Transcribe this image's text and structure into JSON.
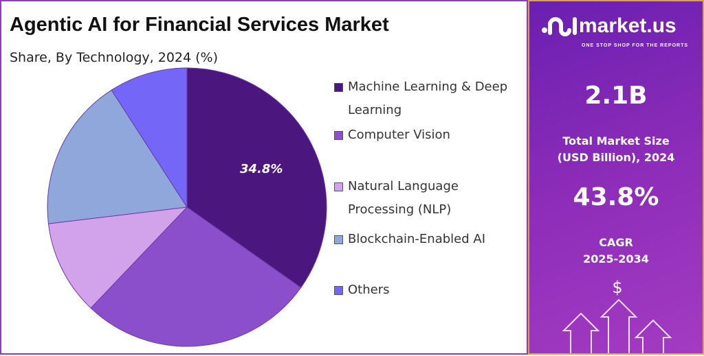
{
  "chart_data": {
    "type": "pie",
    "title": "Agentic AI for Financial Services Market",
    "subtitle": "Share, By Technology, 2024 (%)",
    "categories": [
      "Machine Learning & Deep Learning",
      "Computer Vision",
      "Natural Language Processing (NLP)",
      "Blockchain-Enabled AI",
      "Others"
    ],
    "values": [
      34.8,
      27.3,
      11.0,
      17.8,
      9.1
    ],
    "colors": [
      "#4b167e",
      "#8c4fcb",
      "#d2a3ea",
      "#8fa7da",
      "#7467f8"
    ],
    "data_labels": [
      "34.8%",
      "",
      "",
      "",
      ""
    ],
    "start_angle": "top, clockwise",
    "legend_position": "right"
  },
  "legend": [
    {
      "label_lines": [
        "Machine Learning & Deep",
        "Learning"
      ]
    },
    {
      "label_lines": [
        "Computer Vision"
      ]
    },
    {
      "label_lines": [
        "Natural Language",
        "Processing (NLP)"
      ]
    },
    {
      "label_lines": [
        "Blockchain-Enabled AI"
      ]
    },
    {
      "label_lines": [
        "Others"
      ]
    }
  ],
  "panel": {
    "logo_text": "market.us",
    "tagline": "ONE STOP SHOP FOR THE REPORTS",
    "market_size": "2.1B",
    "market_size_label_1": "Total Market Size",
    "market_size_label_2": "(USD Billion), 2024",
    "cagr": "43.8%",
    "cagr_label_1": "CAGR",
    "cagr_label_2": "2025-2034",
    "icon": "dollar-arrows-icon"
  }
}
